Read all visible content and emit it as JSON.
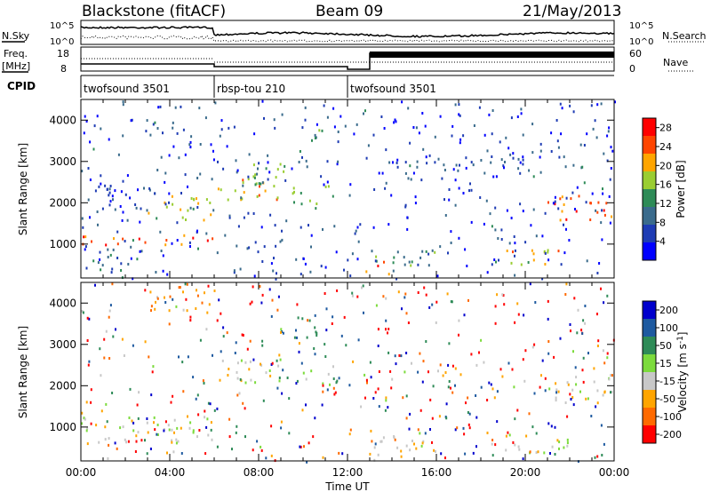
{
  "header": {
    "radar": "Blackstone (fitACF)",
    "beam": "Beam 09",
    "date": "21/May/2013"
  },
  "meta_panel": {
    "nsky_label": "N.Sky",
    "nsearch_label": "N.Search",
    "noise_ticks": [
      "10^5",
      "10^0"
    ],
    "freq_label": "Freq.",
    "freq_unit": "[MHz]",
    "freq_ticks": [
      "18",
      "8"
    ],
    "nave_label": "Nave",
    "nave_ticks": [
      "60",
      "0"
    ],
    "cpid_label": "CPID",
    "cpid_segments": [
      {
        "name": "twofsound 3501",
        "start_hour": 0,
        "end_hour": 6
      },
      {
        "name": "rbsp-tou 210",
        "start_hour": 6,
        "end_hour": 12
      },
      {
        "name": "twofsound 3501",
        "start_hour": 12,
        "end_hour": 24
      }
    ]
  },
  "chart_data": [
    {
      "type": "heatmap",
      "title": "",
      "parameter": "Power",
      "xlabel": "Time UT",
      "ylabel": "Slant Range [km]",
      "x_ticks": [
        "00:00",
        "04:00",
        "08:00",
        "12:00",
        "16:00",
        "20:00",
        "00:00"
      ],
      "xlim_hours": [
        0,
        24
      ],
      "ylim": [
        180,
        4500
      ],
      "y_ticks": [
        1000,
        2000,
        3000,
        4000
      ],
      "colorbar": {
        "label": "Power [dB]",
        "tick_values": [
          4,
          8,
          12,
          16,
          20,
          24,
          28
        ],
        "range": [
          0,
          30
        ],
        "colors": [
          "#0000ff",
          "#1e3cb4",
          "#3a6b8c",
          "#2e8b57",
          "#9acd32",
          "#ffa500",
          "#ff4500",
          "#ff0000"
        ]
      },
      "echo_bands": [
        {
          "t": [
            0,
            6
          ],
          "r": [
            1000,
            1250
          ],
          "value": 24
        },
        {
          "t": [
            0.5,
            2.5
          ],
          "r": [
            300,
            900
          ],
          "value": 10
        },
        {
          "t": [
            3,
            6
          ],
          "r": [
            1600,
            2200
          ],
          "value": 18
        },
        {
          "t": [
            6,
            9
          ],
          "r": [
            2100,
            2700
          ],
          "value": 20
        },
        {
          "t": [
            7.5,
            9.5
          ],
          "r": [
            2400,
            3000
          ],
          "value": 14
        },
        {
          "t": [
            9.5,
            11.5
          ],
          "r": [
            2000,
            2500
          ],
          "value": 16
        },
        {
          "t": [
            10,
            11
          ],
          "r": [
            3300,
            3800
          ],
          "value": 12
        },
        {
          "t": [
            12.8,
            14
          ],
          "r": [
            300,
            600
          ],
          "value": 26
        },
        {
          "t": [
            13,
            16
          ],
          "r": [
            500,
            900
          ],
          "value": 12
        },
        {
          "t": [
            19,
            22
          ],
          "r": [
            500,
            900
          ],
          "value": 20
        },
        {
          "t": [
            21,
            24
          ],
          "r": [
            1600,
            2200
          ],
          "value": 24
        },
        {
          "t": [
            14,
            20
          ],
          "r": [
            2800,
            3200
          ],
          "value": 6
        },
        {
          "t": [
            0,
            3
          ],
          "r": [
            1800,
            2500
          ],
          "value": 6
        }
      ]
    },
    {
      "type": "heatmap",
      "title": "",
      "parameter": "Velocity",
      "xlabel": "Time UT",
      "ylabel": "Slant Range [km]",
      "x_ticks": [
        "00:00",
        "04:00",
        "08:00",
        "12:00",
        "16:00",
        "20:00",
        "00:00"
      ],
      "xlim_hours": [
        0,
        24
      ],
      "ylim": [
        180,
        4500
      ],
      "y_ticks": [
        1000,
        2000,
        3000,
        4000
      ],
      "colorbar": {
        "label": "Velocity [m s^-1]",
        "tick_labels": [
          "200",
          "100",
          "50",
          "15",
          "-15",
          "-50",
          "-100",
          "-200"
        ],
        "colors": [
          "#0000cd",
          "#1e5aa0",
          "#2e8b57",
          "#7cdb3c",
          "#c8c8c8",
          "#ffa500",
          "#ff6a00",
          "#ff0000"
        ]
      },
      "echo_bands": [
        {
          "t": [
            0,
            6
          ],
          "r": [
            600,
            1300
          ],
          "value": 0
        },
        {
          "t": [
            6,
            9
          ],
          "r": [
            2100,
            2700
          ],
          "value": 0
        },
        {
          "t": [
            9.5,
            11
          ],
          "r": [
            3000,
            3700
          ],
          "value": 60
        },
        {
          "t": [
            9.5,
            11.5
          ],
          "r": [
            2000,
            2500
          ],
          "value": 40
        },
        {
          "t": [
            12.8,
            16
          ],
          "r": [
            300,
            900
          ],
          "value": 0
        },
        {
          "t": [
            19,
            22
          ],
          "r": [
            400,
            900
          ],
          "value": 0
        },
        {
          "t": [
            21,
            24
          ],
          "r": [
            1600,
            2300
          ],
          "value": 0
        },
        {
          "t": [
            3,
            6
          ],
          "r": [
            3800,
            4500
          ],
          "value": -40
        }
      ]
    }
  ]
}
